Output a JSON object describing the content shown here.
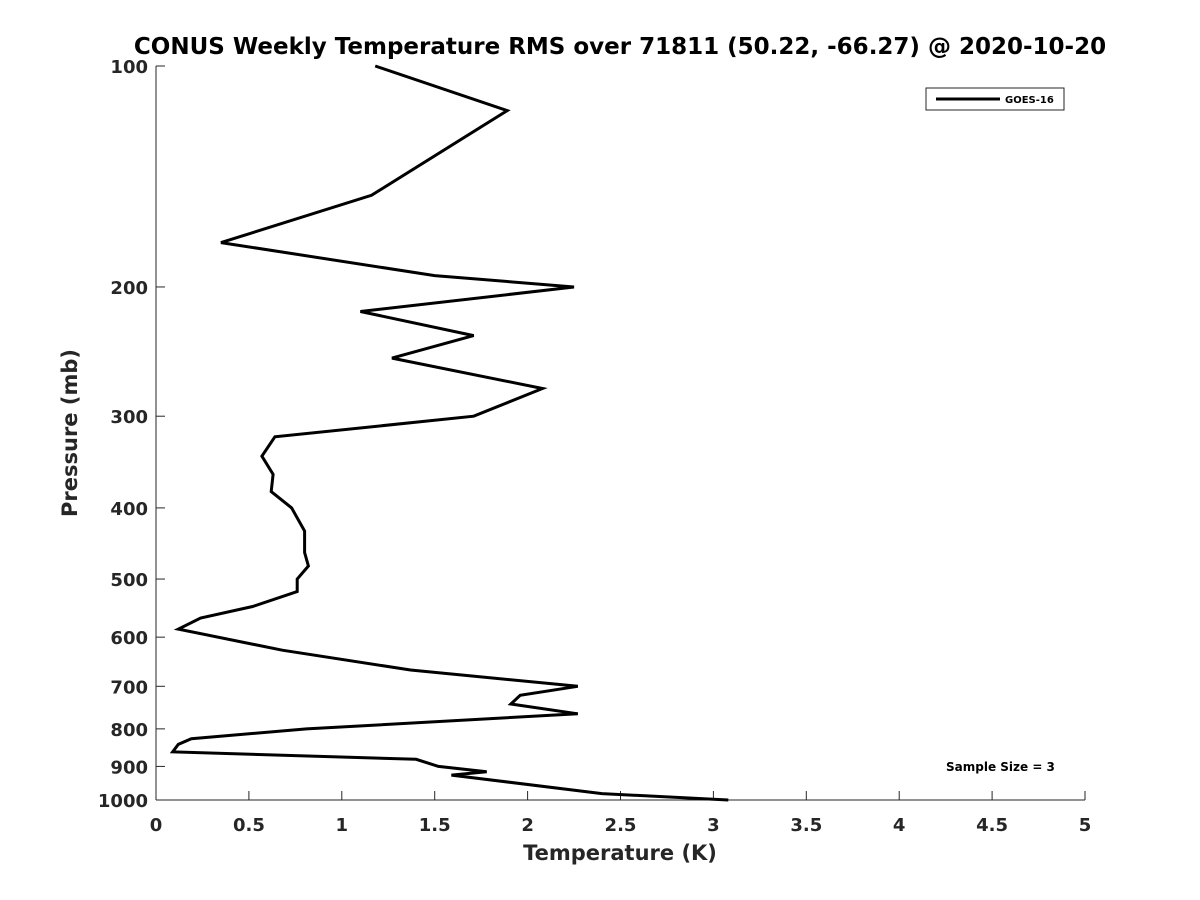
{
  "chart_data": {
    "type": "line",
    "title": "CONUS Weekly Temperature RMS over 71811 (50.22, -66.27) @ 2020-10-20",
    "xlabel": "Temperature (K)",
    "ylabel": "Pressure (mb)",
    "xlim": [
      0,
      5
    ],
    "ylim": [
      100,
      1000
    ],
    "y_scale": "log",
    "y_reversed": true,
    "x_ticks": [
      "0",
      "0.5",
      "1",
      "1.5",
      "2",
      "2.5",
      "3",
      "3.5",
      "4",
      "4.5",
      "5"
    ],
    "y_ticks": [
      "100",
      "200",
      "300",
      "400",
      "500",
      "600",
      "700",
      "800",
      "900",
      "1000"
    ],
    "grid": false,
    "legend_position": "top-right",
    "series": [
      {
        "name": "GOES-16",
        "color": "#000000",
        "points": [
          [
            1.18,
            100
          ],
          [
            1.89,
            115
          ],
          [
            1.16,
            150
          ],
          [
            0.35,
            174
          ],
          [
            1.5,
            193
          ],
          [
            2.25,
            200
          ],
          [
            1.1,
            216
          ],
          [
            1.71,
            233
          ],
          [
            1.27,
            250
          ],
          [
            2.08,
            275
          ],
          [
            1.71,
            300
          ],
          [
            0.64,
            320
          ],
          [
            0.57,
            340
          ],
          [
            0.63,
            360
          ],
          [
            0.62,
            380
          ],
          [
            0.73,
            400
          ],
          [
            0.8,
            430
          ],
          [
            0.8,
            460
          ],
          [
            0.82,
            480
          ],
          [
            0.76,
            500
          ],
          [
            0.76,
            520
          ],
          [
            0.52,
            545
          ],
          [
            0.24,
            565
          ],
          [
            0.12,
            585
          ],
          [
            0.68,
            625
          ],
          [
            1.37,
            665
          ],
          [
            2.27,
            700
          ],
          [
            1.96,
            720
          ],
          [
            1.91,
            740
          ],
          [
            2.27,
            763
          ],
          [
            0.81,
            800
          ],
          [
            0.19,
            825
          ],
          [
            0.12,
            840
          ],
          [
            0.09,
            860
          ],
          [
            1.4,
            880
          ],
          [
            1.52,
            900
          ],
          [
            1.78,
            915
          ],
          [
            1.59,
            925
          ],
          [
            2.4,
            980
          ],
          [
            3.08,
            1000
          ]
        ]
      }
    ],
    "annotations": [
      "Sample Size = 3"
    ]
  }
}
